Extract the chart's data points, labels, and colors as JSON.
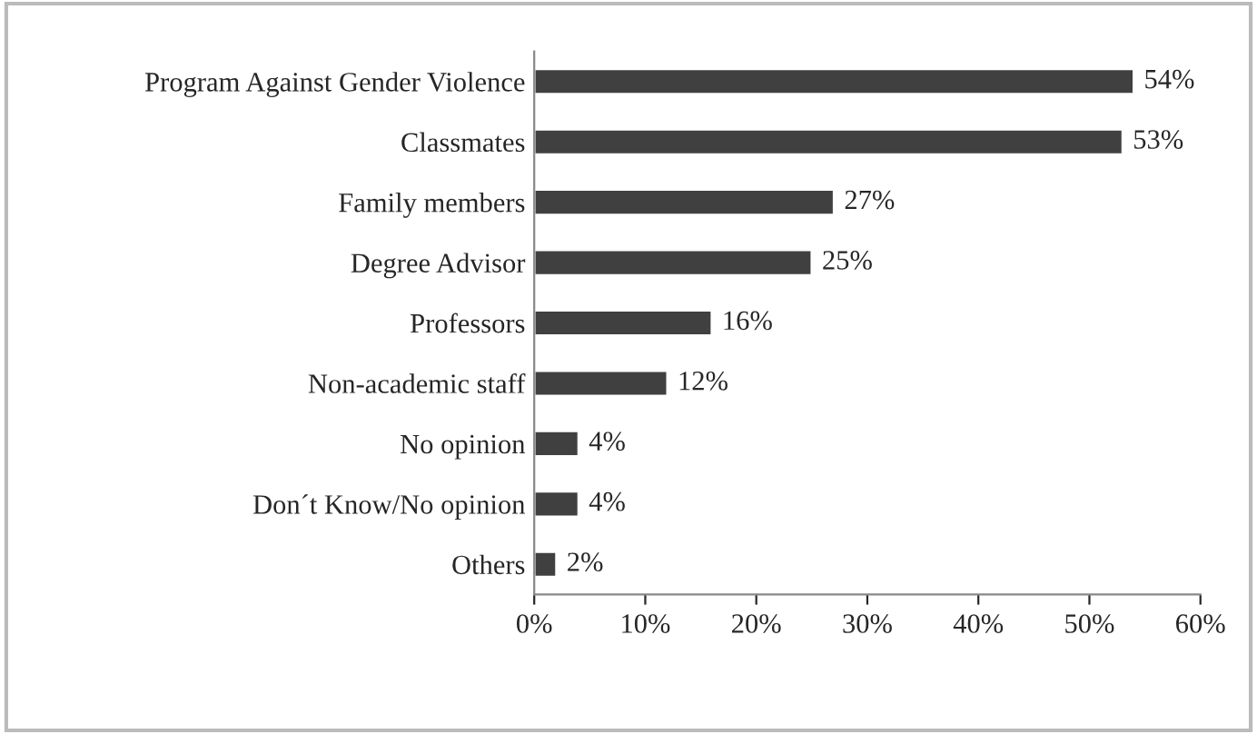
{
  "chart_data": {
    "type": "bar",
    "orientation": "horizontal",
    "categories": [
      "Program Against Gender Violence",
      "Classmates",
      "Family members",
      "Degree Advisor",
      "Professors",
      "Non-academic staff",
      "No opinion",
      "Don´t Know/No opinion",
      "Others"
    ],
    "values": [
      54,
      53,
      27,
      25,
      16,
      12,
      4,
      4,
      2
    ],
    "value_labels": [
      "54%",
      "53%",
      "27%",
      "25%",
      "16%",
      "12%",
      "4%",
      "4%",
      "2%"
    ],
    "color": "#404040",
    "xlim": [
      0,
      60
    ],
    "xticks": [
      {
        "value": 0,
        "label": "0%"
      },
      {
        "value": 10,
        "label": "10%"
      },
      {
        "value": 20,
        "label": "20%"
      },
      {
        "value": 30,
        "label": "30%"
      },
      {
        "value": 40,
        "label": "40%"
      },
      {
        "value": 50,
        "label": "50%"
      },
      {
        "value": 60,
        "label": "60%"
      }
    ],
    "grid": false,
    "legend": false
  }
}
